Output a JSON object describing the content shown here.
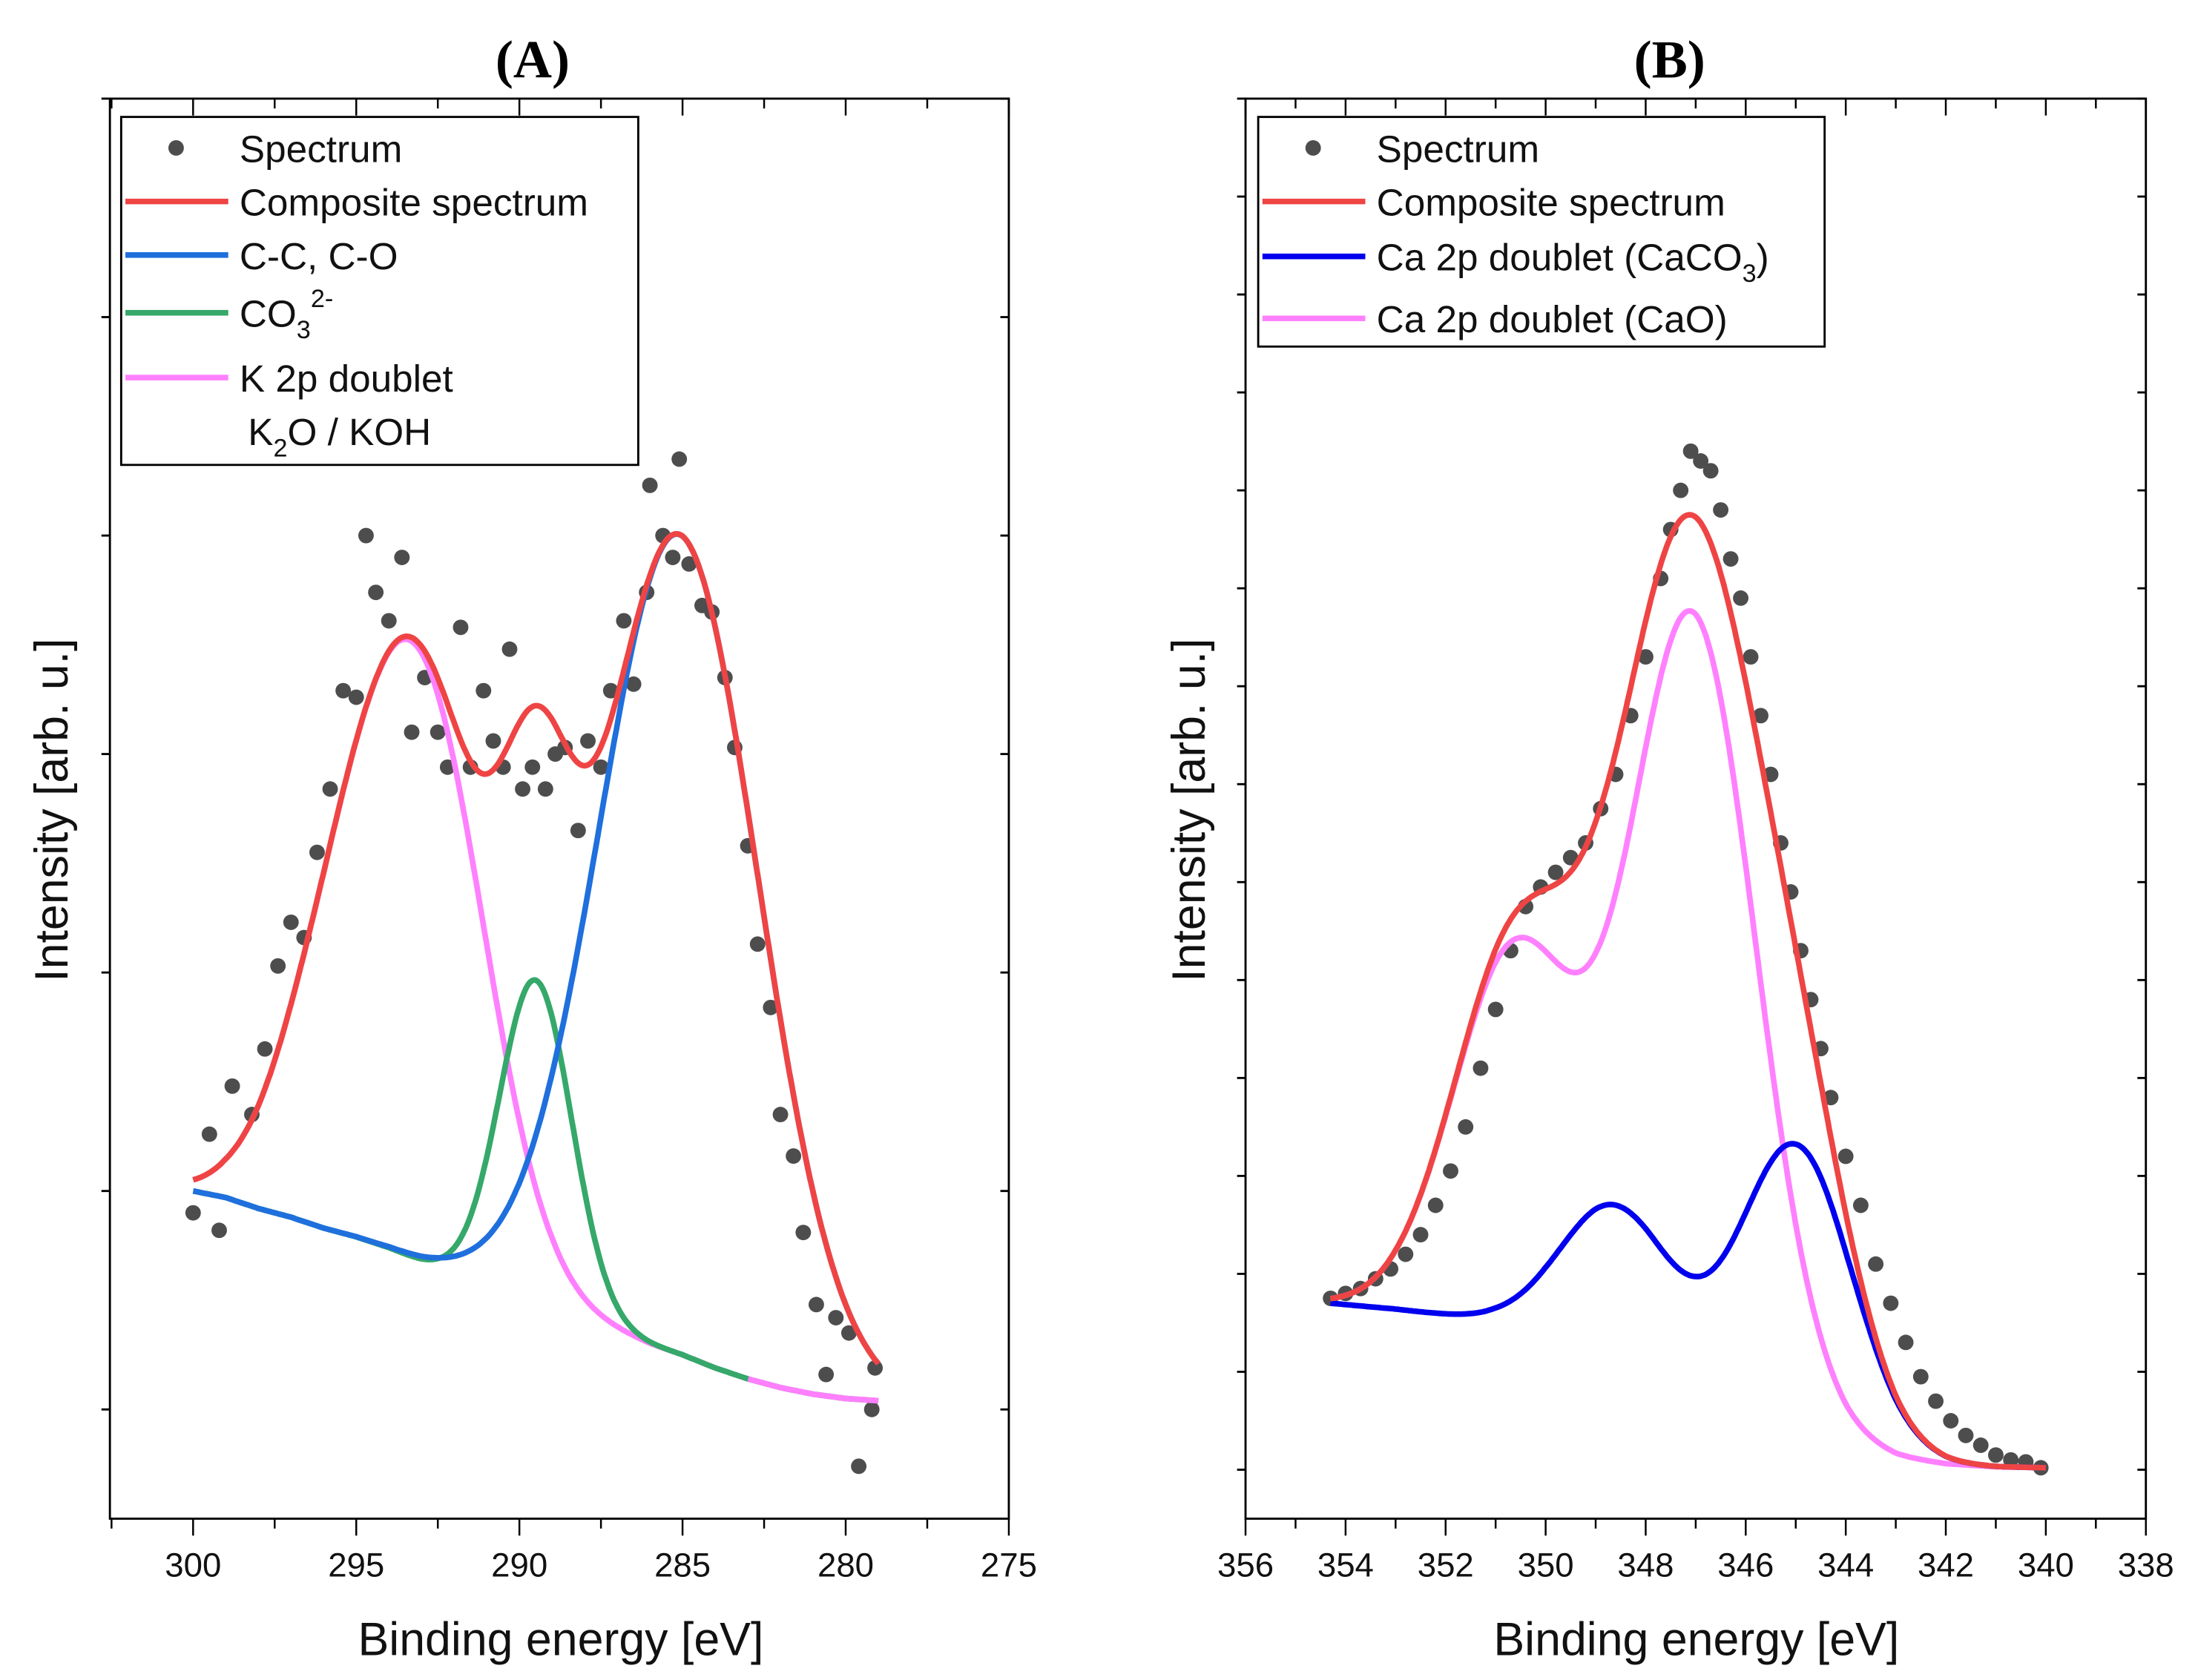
{
  "chart_data": [
    {
      "type": "line",
      "title": "(A)",
      "xlabel": "Binding energy [eV]",
      "ylabel": "Intensity [arb. u.]",
      "xlim": [
        302.55,
        275
      ],
      "ylim": [
        -0.5,
        6
      ],
      "x_ticks": [
        "300",
        "295",
        "290",
        "285",
        "280",
        "275"
      ],
      "y_tick_labels": false,
      "grid": false,
      "legend_position": "top-left",
      "legend": [
        {
          "kind": "marker",
          "color": "#4d4d4d",
          "text": "Spectrum"
        },
        {
          "kind": "line",
          "color": "#ef4444",
          "text": "Composite spectrum"
        },
        {
          "kind": "line",
          "color": "#1f6fdd",
          "text": "C-C, C-O"
        },
        {
          "kind": "line",
          "color": "#35a86a",
          "text": "CO",
          "sub": "3",
          "sup": "2-"
        },
        {
          "kind": "line",
          "color": "#ff80ff",
          "text": "K 2p doublet"
        },
        {
          "kind": "none",
          "text": "K",
          "sub": "2",
          "after": "O / KOH"
        }
      ],
      "spectrum": {
        "name": "Spectrum",
        "color": "#4d4d4d",
        "x": [
          300.0,
          299.5,
          299.2,
          298.8,
          298.2,
          297.8,
          297.4,
          297.0,
          296.6,
          296.2,
          295.8,
          295.4,
          295.0,
          294.7,
          294.4,
          294.0,
          293.6,
          293.3,
          292.9,
          292.5,
          292.2,
          291.8,
          291.5,
          291.1,
          290.8,
          290.5,
          290.3,
          289.9,
          289.6,
          289.2,
          288.9,
          288.6,
          288.2,
          287.9,
          287.5,
          287.2,
          286.8,
          286.5,
          286.1,
          286.0,
          285.6,
          285.3,
          285.1,
          284.8,
          284.4,
          284.1,
          283.7,
          283.4,
          283.0,
          282.7,
          282.3,
          282.0,
          281.6,
          281.3,
          280.9,
          280.6,
          280.3,
          279.9,
          279.6,
          279.2,
          279.1
        ],
        "y": [
          0.9,
          1.26,
          0.82,
          1.48,
          1.35,
          1.65,
          2.03,
          2.23,
          2.16,
          2.55,
          2.84,
          3.29,
          3.26,
          4.0,
          3.74,
          3.61,
          3.9,
          3.1,
          3.35,
          3.1,
          2.94,
          3.58,
          2.94,
          3.29,
          3.06,
          2.94,
          3.48,
          2.84,
          2.94,
          2.84,
          3.0,
          3.03,
          2.65,
          3.06,
          2.94,
          3.29,
          3.61,
          3.32,
          3.74,
          4.23,
          4.0,
          3.9,
          4.35,
          3.87,
          3.68,
          3.65,
          3.35,
          3.03,
          2.58,
          2.13,
          1.84,
          1.35,
          1.16,
          0.81,
          0.48,
          0.16,
          0.42,
          0.35,
          -0.26,
          0.0,
          0.19
        ]
      },
      "baseline": {
        "x": [
          300,
          299,
          298,
          297,
          296,
          295,
          294,
          293,
          292,
          291,
          290,
          289,
          288,
          287,
          286,
          285,
          284,
          283,
          282,
          281,
          280,
          279
        ],
        "y": [
          1.0,
          0.97,
          0.92,
          0.88,
          0.83,
          0.79,
          0.74,
          0.68,
          0.63,
          0.58,
          0.53,
          0.48,
          0.42,
          0.36,
          0.3,
          0.25,
          0.19,
          0.14,
          0.1,
          0.07,
          0.05,
          0.04
        ]
      },
      "fit_range": [
        300,
        279
      ],
      "composite": {
        "name": "Composite spectrum",
        "color": "#ef4444"
      },
      "components": [
        {
          "name": "K 2p doublet",
          "color": "#ff80ff",
          "peaks": [
            {
              "center": 295.3,
              "height": 1.26,
              "sigma": 1.85
            },
            {
              "center": 292.7,
              "height": 2.23,
              "sigma": 1.85
            }
          ]
        },
        {
          "name": "CO3 2-",
          "color": "#35a86a",
          "peaks": [
            {
              "center": 289.5,
              "height": 1.46,
              "sigma": 1.1
            }
          ]
        },
        {
          "name": "C-C, C-O",
          "color": "#1f6fdd",
          "peaks": [
            {
              "center": 285.1,
              "height": 3.75,
              "sigma": 2.45
            }
          ]
        }
      ]
    },
    {
      "type": "line",
      "title": "(B)",
      "xlabel": "Binding energy [eV]",
      "ylabel": "Intensity [arb. u.]",
      "xlim": [
        356,
        338
      ],
      "ylim": [
        -0.5,
        14
      ],
      "x_ticks": [
        "356",
        "354",
        "352",
        "350",
        "348",
        "346",
        "344",
        "342",
        "340",
        "338"
      ],
      "y_tick_labels": false,
      "grid": false,
      "legend_position": "top-left",
      "legend": [
        {
          "kind": "marker",
          "color": "#4d4d4d",
          "text": "Spectrum"
        },
        {
          "kind": "line",
          "color": "#ef4444",
          "text": "Composite spectrum"
        },
        {
          "kind": "line",
          "color": "#0000ee",
          "text": "Ca 2p doublet (CaCO",
          "sub": "3",
          "after": ")"
        },
        {
          "kind": "line",
          "color": "#ff80ff",
          "text": "Ca 2p doublet (CaO)"
        }
      ],
      "spectrum": {
        "name": "Spectrum",
        "color": "#4d4d4d",
        "x": [
          354.3,
          354.0,
          353.7,
          353.4,
          353.1,
          352.8,
          352.5,
          352.2,
          351.9,
          351.6,
          351.3,
          351.0,
          350.7,
          350.4,
          350.1,
          349.8,
          349.5,
          349.2,
          348.9,
          348.6,
          348.3,
          348.0,
          347.7,
          347.5,
          347.3,
          347.1,
          346.9,
          346.7,
          346.5,
          346.3,
          346.1,
          345.9,
          345.7,
          345.5,
          345.3,
          345.1,
          344.9,
          344.7,
          344.5,
          344.3,
          344.0,
          343.7,
          343.4,
          343.1,
          342.8,
          342.5,
          342.2,
          341.9,
          341.6,
          341.3,
          341.0,
          340.7,
          340.4,
          340.1
        ],
        "y": [
          1.75,
          1.8,
          1.85,
          1.95,
          2.05,
          2.2,
          2.4,
          2.7,
          3.05,
          3.5,
          4.1,
          4.7,
          5.3,
          5.75,
          5.95,
          6.1,
          6.25,
          6.4,
          6.75,
          7.1,
          7.7,
          8.3,
          9.1,
          9.6,
          10.0,
          10.4,
          10.3,
          10.2,
          9.8,
          9.3,
          8.9,
          8.3,
          7.7,
          7.1,
          6.4,
          5.9,
          5.3,
          4.8,
          4.3,
          3.8,
          3.2,
          2.7,
          2.1,
          1.7,
          1.3,
          0.95,
          0.7,
          0.5,
          0.35,
          0.25,
          0.15,
          0.1,
          0.08,
          0.02
        ]
      },
      "baseline": {
        "x": [
          354.3,
          353,
          352,
          351,
          350,
          349,
          348,
          347,
          346,
          345,
          344,
          343,
          342,
          341,
          340
        ],
        "y": [
          1.7,
          1.64,
          1.58,
          1.52,
          1.43,
          1.32,
          1.17,
          0.98,
          0.75,
          0.5,
          0.28,
          0.13,
          0.06,
          0.03,
          0.02
        ]
      },
      "fit_range": [
        354.3,
        340
      ],
      "composite": {
        "name": "Composite spectrum",
        "color": "#ef4444"
      },
      "components": [
        {
          "name": "Ca 2p doublet (CaO)",
          "color": "#ff80ff",
          "peaks": [
            {
              "center": 350.6,
              "height": 3.8,
              "sigma": 1.25
            },
            {
              "center": 347.05,
              "height": 7.7,
              "sigma": 1.25
            }
          ]
        },
        {
          "name": "Ca 2p doublet (CaCO3)",
          "color": "#0000ee",
          "peaks": [
            {
              "center": 348.6,
              "height": 1.43,
              "sigma": 1.1
            },
            {
              "center": 344.95,
              "height": 2.82,
              "sigma": 1.1
            }
          ]
        }
      ]
    }
  ]
}
